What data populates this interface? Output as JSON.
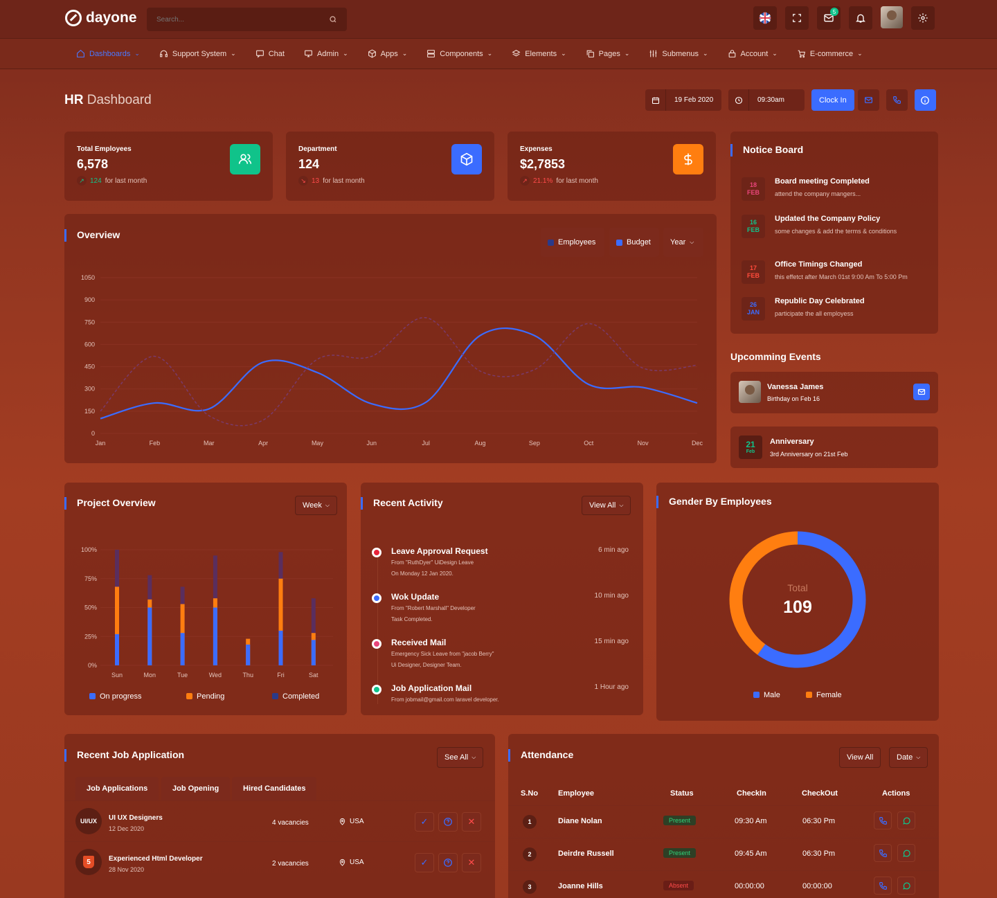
{
  "app": {
    "logo_text": "dayone",
    "search_placeholder": "Search...",
    "mail_badge": "5"
  },
  "nav": [
    {
      "label": "Dashboards",
      "icon": "home-icon",
      "active": true,
      "has_dropdown": true
    },
    {
      "label": "Support System",
      "icon": "headset-icon",
      "has_dropdown": true
    },
    {
      "label": "Chat",
      "icon": "chat-icon",
      "has_dropdown": false
    },
    {
      "label": "Admin",
      "icon": "monitor-icon",
      "has_dropdown": true
    },
    {
      "label": "Apps",
      "icon": "apps-icon",
      "has_dropdown": true
    },
    {
      "label": "Components",
      "icon": "server-icon",
      "has_dropdown": true
    },
    {
      "label": "Elements",
      "icon": "layers-icon",
      "has_dropdown": true
    },
    {
      "label": "Pages",
      "icon": "copy-icon",
      "has_dropdown": true
    },
    {
      "label": "Submenus",
      "icon": "sliders-icon",
      "has_dropdown": true
    },
    {
      "label": "Account",
      "icon": "lock-icon",
      "has_dropdown": true
    },
    {
      "label": "E-commerce",
      "icon": "cart-icon",
      "has_dropdown": true
    }
  ],
  "header": {
    "title_bold": "HR",
    "title_rest": " Dashboard",
    "date": "19 Feb 2020",
    "time": "09:30am",
    "clock_in": "Clock In"
  },
  "stats": [
    {
      "label": "Total Employees",
      "value": "6,578",
      "delta": "124",
      "delta_note": "for last month",
      "trend": "up",
      "icon": "users-icon",
      "color": "#10c38a"
    },
    {
      "label": "Department",
      "value": "124",
      "delta": "13",
      "delta_note": "for last month",
      "trend": "down",
      "icon": "box-icon",
      "color": "#3b6cff"
    },
    {
      "label": "Expenses",
      "value": "$2,7853",
      "delta": "21.1%",
      "delta_note": "for last month",
      "trend": "up-red",
      "icon": "dollar-icon",
      "color": "#ff7e10"
    }
  ],
  "overview": {
    "title": "Overview",
    "legend_employees": "Employees",
    "legend_budget": "Budget",
    "period": "Year"
  },
  "chart_data": {
    "type": "line",
    "x": [
      "Jan",
      "Feb",
      "Mar",
      "Apr",
      "May",
      "Jun",
      "Jul",
      "Aug",
      "Sep",
      "Oct",
      "Nov",
      "Dec"
    ],
    "ylim": [
      0,
      1050
    ],
    "yticks": [
      0,
      150,
      300,
      450,
      600,
      750,
      900,
      1050
    ],
    "series": [
      {
        "name": "Budget",
        "style": "solid",
        "color": "#3b6cff",
        "values": [
          100,
          205,
          165,
          480,
          410,
          200,
          210,
          660,
          660,
          330,
          310,
          205
        ]
      },
      {
        "name": "Employees",
        "style": "dashed",
        "color": "#7a3a6a",
        "values": [
          150,
          520,
          120,
          90,
          500,
          520,
          780,
          420,
          430,
          740,
          440,
          460
        ]
      }
    ]
  },
  "notice_board": {
    "title": "Notice Board",
    "items": [
      {
        "day": "18",
        "month": "FEB",
        "title": "Board meeting Completed",
        "desc": "attend the company mangers...",
        "color": "#e8457a"
      },
      {
        "day": "16",
        "month": "FEB",
        "title": "Updated the Company Policy",
        "desc": "some changes & add the terms & conditions",
        "color": "#10c38a"
      },
      {
        "day": "17",
        "month": "FEB",
        "title": "Office Timings Changed",
        "desc": "this effetct after March 01st 9:00 Am To 5:00 Pm",
        "color": "#ff4b3b"
      },
      {
        "day": "26",
        "month": "JAN",
        "title": "Republic Day Celebrated",
        "desc": "participate the all employess",
        "color": "#3b6cff"
      }
    ]
  },
  "events": {
    "title": "Upcomming Events",
    "items": [
      {
        "name": "Vanessa James",
        "desc": "Birthday on Feb 16"
      },
      {
        "day": "21",
        "month": "Feb",
        "name": "Anniversary",
        "desc": "3rd Anniversary on 21st Feb"
      }
    ]
  },
  "project_overview": {
    "title": "Project Overview",
    "period": "Week",
    "chart_data": {
      "type": "bar",
      "categories": [
        "Sun",
        "Mon",
        "Tue",
        "Wed",
        "Thu",
        "Fri",
        "Sat"
      ],
      "ylim": [
        0,
        100
      ],
      "yticks": [
        "0%",
        "25%",
        "50%",
        "75%",
        "100%"
      ],
      "series": [
        {
          "name": "On progress",
          "color": "#3b6cff",
          "values": [
            27,
            50,
            28,
            50,
            18,
            30,
            22
          ]
        },
        {
          "name": "Pending",
          "color": "#ff7e10",
          "values": [
            68,
            57,
            53,
            58,
            23,
            75,
            28
          ]
        },
        {
          "name": "Completed",
          "color": "#5a2e5e",
          "values": [
            100,
            78,
            68,
            95,
            23,
            98,
            58
          ]
        }
      ]
    },
    "legend": [
      "On progress",
      "Pending",
      "Completed"
    ]
  },
  "recent_activity": {
    "title": "Recent Activity",
    "view_all": "View All",
    "items": [
      {
        "title": "Leave Approval Request",
        "time": "6 min ago",
        "line1": "From \"RuthDyer\" UiDesign Leave",
        "line2": "On Monday 12 Jan 2020.",
        "color": "#e8233a"
      },
      {
        "title": "Wok Update",
        "time": "10 min ago",
        "line1": "From \"Robert Marshall\" Developer",
        "line2": "Task Completed.",
        "color": "#3b6cff"
      },
      {
        "title": "Received Mail",
        "time": "15 min ago",
        "line1": "Emergency Sick Leave from \"jacob Berry\"",
        "line2": "Ui Designer, Designer Team.",
        "color": "#e8457a"
      },
      {
        "title": "Job Application Mail",
        "time": "1 Hour ago",
        "line1": "From jobmail@gmail.com laravel developer.",
        "line2": "",
        "color": "#10c38a"
      }
    ]
  },
  "gender": {
    "title": "Gender By Employees",
    "total_label": "Total",
    "total": "109",
    "chart_data": {
      "type": "pie",
      "labels": [
        "Male",
        "Female"
      ],
      "values": [
        60,
        40
      ],
      "colors": [
        "#3b6cff",
        "#ff7e10"
      ]
    }
  },
  "jobs": {
    "title": "Recent Job Application",
    "see_all": "See All",
    "tabs": [
      "Job Applications",
      "Job Opening",
      "Hired Candidates"
    ],
    "rows": [
      {
        "logo": "UI/UX",
        "title": "UI UX Designers",
        "date": "12 Dec 2020",
        "vacancies": "4 vacancies",
        "location": "USA"
      },
      {
        "logo": "5",
        "title": "Experienced Html Developer",
        "date": "28 Nov 2020",
        "vacancies": "2 vacancies",
        "location": "USA"
      }
    ]
  },
  "attendance": {
    "title": "Attendance",
    "view_all": "View All",
    "date_filter": "Date",
    "headers": [
      "S.No",
      "Employee",
      "Status",
      "CheckIn",
      "CheckOut",
      "Actions"
    ],
    "rows": [
      {
        "no": "1",
        "name": "Diane Nolan",
        "status": "Present",
        "in": "09:30 Am",
        "out": "06:30 Pm"
      },
      {
        "no": "2",
        "name": "Deirdre Russell",
        "status": "Present",
        "in": "09:45 Am",
        "out": "06:30 Pm"
      },
      {
        "no": "3",
        "name": "Joanne Hills",
        "status": "Absent",
        "in": "00:00:00",
        "out": "00:00:00"
      }
    ]
  }
}
